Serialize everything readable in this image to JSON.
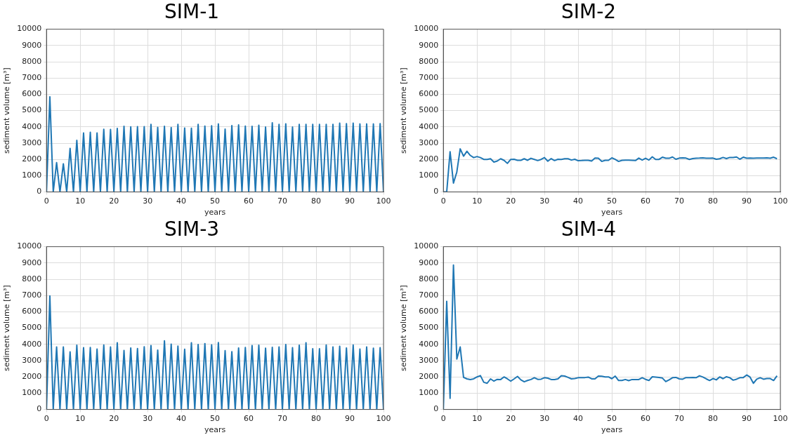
{
  "chart_data": [
    {
      "type": "line",
      "title": "SIM-1",
      "xlabel": "years",
      "ylabel": "sediment volume [m³]",
      "xlim": [
        0,
        100
      ],
      "xticks": [
        0,
        10,
        20,
        30,
        40,
        50,
        60,
        70,
        80,
        90,
        100
      ],
      "ylim": [
        0,
        10000
      ],
      "yticks": [
        0,
        1000,
        2000,
        3000,
        4000,
        5000,
        6000,
        7000,
        8000,
        9000,
        10000
      ],
      "grid": true,
      "legend": false,
      "x": [
        0,
        1,
        2,
        3,
        4,
        5,
        6,
        7,
        8,
        9,
        10,
        11,
        12,
        13,
        14,
        15,
        16,
        17,
        18,
        19,
        20,
        21,
        22,
        23,
        24,
        25,
        26,
        27,
        28,
        29,
        30,
        31,
        32,
        33,
        34,
        35,
        36,
        37,
        38,
        39,
        40,
        41,
        42,
        43,
        44,
        45,
        46,
        47,
        48,
        49,
        50,
        51,
        52,
        53,
        54,
        55,
        56,
        57,
        58,
        59,
        60,
        61,
        62,
        63,
        64,
        65,
        66,
        67,
        68,
        69,
        70,
        71,
        72,
        73,
        74,
        75,
        76,
        77,
        78,
        79,
        80,
        81,
        82,
        83,
        84,
        85,
        86,
        87,
        88,
        89,
        90,
        91,
        92,
        93,
        94,
        95,
        96,
        97,
        98,
        99,
        100
      ],
      "series": [
        {
          "color": "#1f77b4",
          "values": [
            0,
            5850,
            0,
            1800,
            0,
            1730,
            0,
            2680,
            0,
            3170,
            0,
            3620,
            0,
            3670,
            0,
            3630,
            0,
            3850,
            0,
            3840,
            0,
            3900,
            0,
            4030,
            0,
            4000,
            0,
            4010,
            0,
            4010,
            0,
            4150,
            0,
            3970,
            0,
            4030,
            0,
            3960,
            0,
            4150,
            0,
            3930,
            0,
            3920,
            0,
            4150,
            0,
            4050,
            0,
            4070,
            0,
            4180,
            0,
            3860,
            0,
            4080,
            0,
            4120,
            0,
            4040,
            0,
            4030,
            0,
            4100,
            0,
            3990,
            0,
            4250,
            0,
            4150,
            0,
            4190,
            0,
            3990,
            0,
            4150,
            0,
            4150,
            0,
            4150,
            0,
            4150,
            0,
            4150,
            0,
            4150,
            0,
            4230,
            0,
            4200,
            0,
            4230,
            0,
            4180,
            0,
            4180,
            0,
            4180,
            0,
            4200,
            0
          ]
        }
      ]
    },
    {
      "type": "line",
      "title": "SIM-2",
      "xlabel": "years",
      "ylabel": "sediment volume [m³]",
      "xlim": [
        0,
        100
      ],
      "xticks": [
        0,
        10,
        20,
        30,
        40,
        50,
        60,
        70,
        80,
        90,
        100
      ],
      "ylim": [
        0,
        10000
      ],
      "yticks": [
        0,
        1000,
        2000,
        3000,
        4000,
        5000,
        6000,
        7000,
        8000,
        9000,
        10000
      ],
      "grid": true,
      "legend": false,
      "x": [
        0,
        1,
        2,
        3,
        4,
        5,
        6,
        7,
        8,
        9,
        10,
        11,
        12,
        13,
        14,
        15,
        16,
        17,
        18,
        19,
        20,
        21,
        22,
        23,
        24,
        25,
        26,
        27,
        28,
        29,
        30,
        31,
        32,
        33,
        34,
        35,
        36,
        37,
        38,
        39,
        40,
        41,
        42,
        43,
        44,
        45,
        46,
        47,
        48,
        49,
        50,
        51,
        52,
        53,
        54,
        55,
        56,
        57,
        58,
        59,
        60,
        61,
        62,
        63,
        64,
        65,
        66,
        67,
        68,
        69,
        70,
        71,
        72,
        73,
        74,
        75,
        76,
        77,
        78,
        79,
        80,
        81,
        82,
        83,
        84,
        85,
        86,
        87,
        88,
        89,
        90,
        91,
        92,
        93,
        94,
        95,
        96,
        97,
        98,
        99
      ],
      "series": [
        {
          "color": "#1f77b4",
          "values": [
            0,
            0,
            2475,
            545,
            1225,
            2650,
            2200,
            2500,
            2245,
            2110,
            2175,
            2110,
            2000,
            2000,
            2040,
            1835,
            1900,
            2040,
            1945,
            1755,
            2000,
            2010,
            1945,
            1945,
            2040,
            1945,
            2070,
            2000,
            1930,
            2000,
            2110,
            1890,
            2050,
            1930,
            2010,
            2000,
            2040,
            2040,
            1960,
            2010,
            1920,
            1930,
            1945,
            1945,
            1900,
            2080,
            2070,
            1875,
            1945,
            1945,
            2095,
            2000,
            1875,
            1945,
            1960,
            1960,
            1945,
            1930,
            2080,
            1960,
            2070,
            1960,
            2160,
            2000,
            2000,
            2135,
            2070,
            2070,
            2150,
            2010,
            2080,
            2095,
            2080,
            2000,
            2050,
            2070,
            2080,
            2095,
            2070,
            2070,
            2080,
            2010,
            2040,
            2120,
            2050,
            2120,
            2120,
            2150,
            2010,
            2135,
            2070,
            2080,
            2070,
            2080,
            2080,
            2080,
            2095,
            2070,
            2135,
            2040
          ]
        }
      ]
    },
    {
      "type": "line",
      "title": "SIM-3",
      "xlabel": "years",
      "ylabel": "sediment volume [m³]",
      "xlim": [
        0,
        100
      ],
      "xticks": [
        0,
        10,
        20,
        30,
        40,
        50,
        60,
        70,
        80,
        90,
        100
      ],
      "ylim": [
        0,
        10000
      ],
      "yticks": [
        0,
        1000,
        2000,
        3000,
        4000,
        5000,
        6000,
        7000,
        8000,
        9000,
        10000
      ],
      "grid": true,
      "legend": false,
      "x": [
        0,
        1,
        2,
        3,
        4,
        5,
        6,
        7,
        8,
        9,
        10,
        11,
        12,
        13,
        14,
        15,
        16,
        17,
        18,
        19,
        20,
        21,
        22,
        23,
        24,
        25,
        26,
        27,
        28,
        29,
        30,
        31,
        32,
        33,
        34,
        35,
        36,
        37,
        38,
        39,
        40,
        41,
        42,
        43,
        44,
        45,
        46,
        47,
        48,
        49,
        50,
        51,
        52,
        53,
        54,
        55,
        56,
        57,
        58,
        59,
        60,
        61,
        62,
        63,
        64,
        65,
        66,
        67,
        68,
        69,
        70,
        71,
        72,
        73,
        74,
        75,
        76,
        77,
        78,
        79,
        80,
        81,
        82,
        83,
        84,
        85,
        86,
        87,
        88,
        89,
        90,
        91,
        92,
        93,
        94,
        95,
        96,
        97,
        98,
        99,
        100
      ],
      "series": [
        {
          "color": "#1f77b4",
          "values": [
            0,
            6980,
            0,
            3840,
            0,
            3840,
            0,
            3540,
            0,
            3950,
            0,
            3800,
            0,
            3810,
            0,
            3710,
            0,
            3960,
            0,
            3840,
            0,
            4100,
            0,
            3620,
            0,
            3780,
            0,
            3740,
            0,
            3850,
            0,
            3930,
            0,
            3650,
            0,
            4220,
            0,
            4010,
            0,
            3890,
            0,
            3700,
            0,
            4100,
            0,
            3990,
            0,
            4050,
            0,
            3970,
            0,
            4110,
            0,
            3610,
            0,
            3550,
            0,
            3780,
            0,
            3810,
            0,
            3930,
            0,
            3950,
            0,
            3770,
            0,
            3820,
            0,
            3840,
            0,
            3990,
            0,
            3800,
            0,
            3950,
            0,
            4100,
            0,
            3730,
            0,
            3730,
            0,
            3960,
            0,
            3840,
            0,
            3880,
            0,
            3780,
            0,
            3960,
            0,
            3710,
            0,
            3840,
            0,
            3770,
            0,
            3800,
            0
          ]
        }
      ]
    },
    {
      "type": "line",
      "title": "SIM-4",
      "xlabel": "years",
      "ylabel": "sediment volume [m³]",
      "xlim": [
        0,
        100
      ],
      "xticks": [
        0,
        10,
        20,
        30,
        40,
        50,
        60,
        70,
        80,
        90,
        100
      ],
      "ylim": [
        0,
        10000
      ],
      "yticks": [
        0,
        1000,
        2000,
        3000,
        4000,
        5000,
        6000,
        7000,
        8000,
        9000,
        10000
      ],
      "grid": true,
      "legend": false,
      "x": [
        0,
        1,
        2,
        3,
        4,
        5,
        6,
        7,
        8,
        9,
        10,
        11,
        12,
        13,
        14,
        15,
        16,
        17,
        18,
        19,
        20,
        21,
        22,
        23,
        24,
        25,
        26,
        27,
        28,
        29,
        30,
        31,
        32,
        33,
        34,
        35,
        36,
        37,
        38,
        39,
        40,
        41,
        42,
        43,
        44,
        45,
        46,
        47,
        48,
        49,
        50,
        51,
        52,
        53,
        54,
        55,
        56,
        57,
        58,
        59,
        60,
        61,
        62,
        63,
        64,
        65,
        66,
        67,
        68,
        69,
        70,
        71,
        72,
        73,
        74,
        75,
        76,
        77,
        78,
        79,
        80,
        81,
        82,
        83,
        84,
        85,
        86,
        87,
        88,
        89,
        90,
        91,
        92,
        93,
        94,
        95,
        96,
        97,
        98,
        99
      ],
      "series": [
        {
          "color": "#1f77b4",
          "values": [
            0,
            6640,
            680,
            8870,
            3100,
            3840,
            1970,
            1880,
            1840,
            1880,
            2000,
            2080,
            1670,
            1610,
            1880,
            1740,
            1850,
            1840,
            2000,
            1880,
            1740,
            1880,
            2030,
            1820,
            1700,
            1780,
            1840,
            1950,
            1850,
            1860,
            1950,
            1920,
            1840,
            1840,
            1880,
            2070,
            2050,
            1970,
            1880,
            1900,
            1950,
            1950,
            1960,
            1990,
            1880,
            1880,
            2050,
            2040,
            2000,
            2000,
            1890,
            2050,
            1780,
            1780,
            1840,
            1770,
            1840,
            1840,
            1840,
            1950,
            1850,
            1780,
            2010,
            1990,
            1970,
            1930,
            1710,
            1820,
            1950,
            1970,
            1880,
            1860,
            1960,
            1960,
            1970,
            1950,
            2070,
            1990,
            1880,
            1780,
            1900,
            1820,
            2000,
            1890,
            2010,
            1950,
            1800,
            1860,
            1950,
            1960,
            2120,
            1990,
            1610,
            1860,
            1950,
            1860,
            1900,
            1900,
            1780,
            2070
          ]
        }
      ]
    }
  ]
}
